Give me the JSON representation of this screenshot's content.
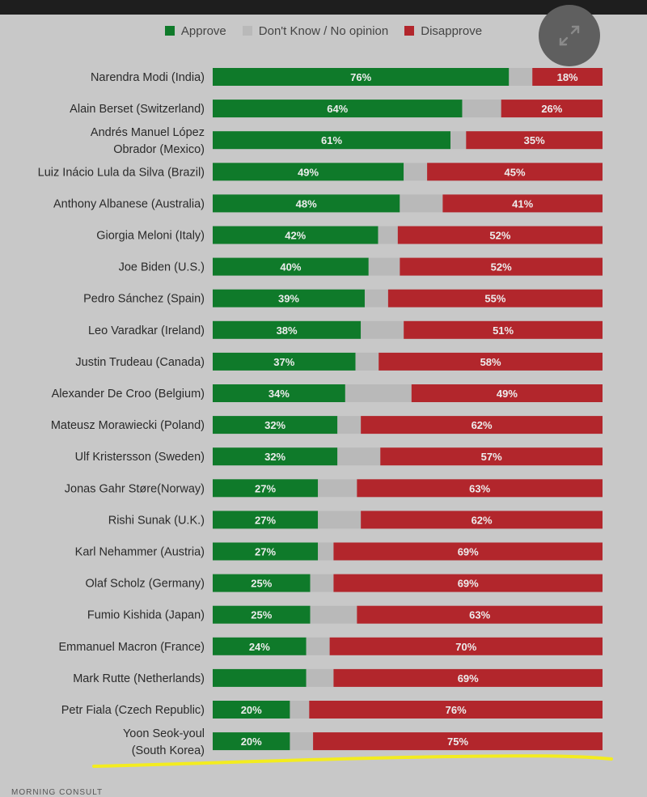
{
  "legend": {
    "approve": "Approve",
    "dont_know": "Don't Know / No opinion",
    "disapprove": "Disapprove"
  },
  "colors": {
    "approve": "#0f7a2a",
    "dont_know": "#b9b9b9",
    "disapprove": "#b2262c",
    "background": "#c8c8c8",
    "highlight": "#f3ec1f"
  },
  "icons": {
    "expand": "expand-arrows-icon"
  },
  "footer": {
    "left": "MORNING CONSULT"
  },
  "chart_data": {
    "type": "bar",
    "orientation": "horizontal",
    "stacked": true,
    "xlim": [
      0,
      100
    ],
    "categories": [
      "Narendra Modi (India)",
      "Alain Berset (Switzerland)",
      "Andrés Manuel López Obrador (Mexico)",
      "Luiz Inácio Lula da Silva (Brazil)",
      "Anthony Albanese (Australia)",
      "Giorgia Meloni (Italy)",
      "Joe Biden (U.S.)",
      "Pedro Sánchez (Spain)",
      "Leo Varadkar (Ireland)",
      "Justin Trudeau (Canada)",
      "Alexander De Croo (Belgium)",
      "Mateusz Morawiecki (Poland)",
      "Ulf Kristersson (Sweden)",
      "Jonas Gahr Støre(Norway)",
      "Rishi Sunak (U.K.)",
      "Karl Nehammer (Austria)",
      "Olaf Scholz (Germany)",
      "Fumio Kishida (Japan)",
      "Emmanuel Macron (France)",
      "Mark Rutte (Netherlands)",
      "Petr Fiala (Czech Republic)",
      "Yoon Seok-youl (South Korea)"
    ],
    "category_lines": [
      [
        "Narendra Modi (India)"
      ],
      [
        "Alain Berset (Switzerland)"
      ],
      [
        "Andrés Manuel López",
        "Obrador (Mexico)"
      ],
      [
        "Luiz Inácio Lula da Silva (Brazil)"
      ],
      [
        "Anthony Albanese (Australia)"
      ],
      [
        "Giorgia Meloni (Italy)"
      ],
      [
        "Joe Biden (U.S.)"
      ],
      [
        "Pedro Sánchez (Spain)"
      ],
      [
        "Leo Varadkar (Ireland)"
      ],
      [
        "Justin Trudeau (Canada)"
      ],
      [
        "Alexander De Croo (Belgium)"
      ],
      [
        "Mateusz Morawiecki (Poland)"
      ],
      [
        "Ulf Kristersson (Sweden)"
      ],
      [
        "Jonas Gahr Støre(Norway)"
      ],
      [
        "Rishi Sunak (U.K.)"
      ],
      [
        "Karl Nehammer (Austria)"
      ],
      [
        "Olaf Scholz (Germany)"
      ],
      [
        "Fumio Kishida (Japan)"
      ],
      [
        "Emmanuel Macron (France)"
      ],
      [
        "Mark Rutte (Netherlands)"
      ],
      [
        "Petr Fiala (Czech Republic)"
      ],
      [
        "Yoon Seok-youl",
        "(South Korea)"
      ]
    ],
    "series": [
      {
        "name": "Approve",
        "values": [
          76,
          64,
          61,
          49,
          48,
          42,
          40,
          39,
          38,
          37,
          34,
          32,
          32,
          27,
          27,
          27,
          25,
          25,
          24,
          24,
          20,
          20
        ],
        "labels": [
          "76%",
          "64%",
          "61%",
          "49%",
          "48%",
          "42%",
          "40%",
          "39%",
          "38%",
          "37%",
          "34%",
          "32%",
          "32%",
          "27%",
          "27%",
          "27%",
          "25%",
          "25%",
          "24%",
          "",
          "20%",
          "20%"
        ]
      },
      {
        "name": "Don't Know / No opinion",
        "values": [
          6,
          10,
          4,
          6,
          11,
          5,
          8,
          6,
          11,
          6,
          17,
          6,
          11,
          10,
          11,
          4,
          6,
          12,
          6,
          7,
          5,
          6
        ],
        "labels": [
          "",
          "",
          "",
          "",
          "",
          "",
          "",
          "",
          "",
          "",
          "",
          "",
          "",
          "",
          "",
          "",
          "",
          "",
          "",
          "",
          "",
          ""
        ]
      },
      {
        "name": "Disapprove",
        "values": [
          18,
          26,
          35,
          45,
          41,
          52,
          52,
          55,
          51,
          58,
          49,
          62,
          57,
          63,
          62,
          69,
          69,
          63,
          70,
          69,
          76,
          75
        ],
        "labels": [
          "18%",
          "26%",
          "35%",
          "45%",
          "41%",
          "52%",
          "52%",
          "55%",
          "51%",
          "58%",
          "49%",
          "62%",
          "57%",
          "63%",
          "62%",
          "69%",
          "69%",
          "63%",
          "70%",
          "69%",
          "76%",
          "75%"
        ]
      }
    ]
  }
}
